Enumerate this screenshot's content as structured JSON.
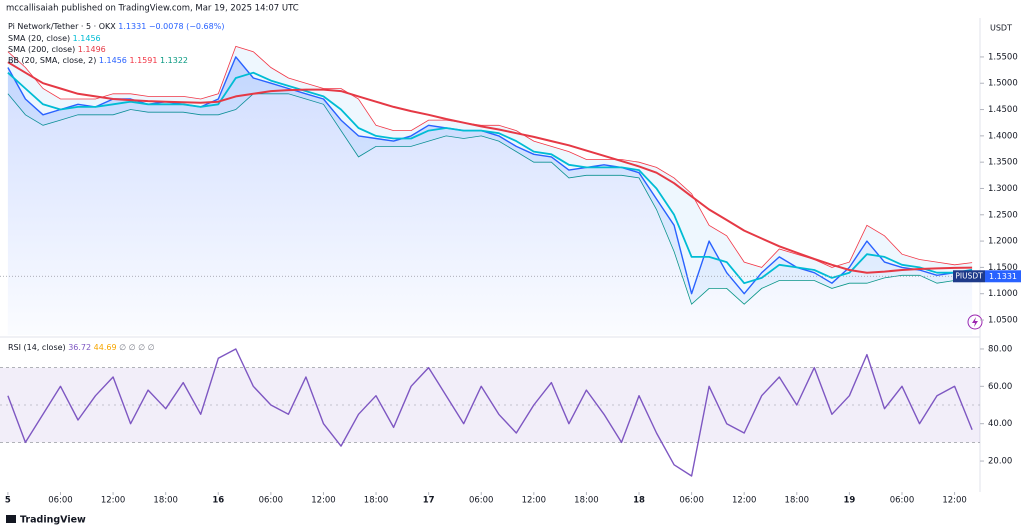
{
  "header": {
    "byline": "mccallisaiah published on TradingView.com, Mar 19, 2025 14:07 UTC",
    "brand": "TradingView"
  },
  "chart_data": [
    {
      "type": "line",
      "title": "Pi Network/Tether · 5 · OKX",
      "change": "−0.0078 (−0.68%)",
      "symbol": "PIUSDT",
      "unit": "USDT",
      "x": [
        0,
        2,
        4,
        6,
        8,
        10,
        12,
        14,
        16,
        18,
        20,
        22,
        24,
        26,
        28,
        30,
        32,
        34,
        36,
        38,
        40,
        42,
        44,
        46,
        48,
        50,
        52,
        54,
        56,
        58,
        60,
        62,
        64,
        66,
        68,
        70,
        72,
        74,
        76,
        78,
        80,
        82,
        84,
        86,
        88,
        90,
        92,
        94,
        96,
        98,
        100,
        102,
        104,
        106,
        108,
        110
      ],
      "xlim": [
        -0.9,
        110.9
      ],
      "ylim": [
        1.0215,
        1.624
      ],
      "yticks": [
        {
          "value": 1.05,
          "label": "1.0500"
        },
        {
          "value": 1.1,
          "label": "1.1000"
        },
        {
          "value": 1.15,
          "label": "1.1500"
        },
        {
          "value": 1.2,
          "label": "1.2000"
        },
        {
          "value": 1.25,
          "label": "1.2500"
        },
        {
          "value": 1.3,
          "label": "1.3000"
        },
        {
          "value": 1.35,
          "label": "1.3500"
        },
        {
          "value": 1.4,
          "label": "1.4000"
        },
        {
          "value": 1.45,
          "label": "1.4500"
        },
        {
          "value": 1.5,
          "label": "1.5000"
        },
        {
          "value": 1.55,
          "label": "1.5500"
        }
      ],
      "series": [
        {
          "name": "Pi Network/Tether · 5 · OKX",
          "color": "#2962ff",
          "values": [
            1.53,
            1.47,
            1.44,
            1.45,
            1.46,
            1.455,
            1.47,
            1.47,
            1.46,
            1.465,
            1.46,
            1.455,
            1.47,
            1.55,
            1.51,
            1.5,
            1.49,
            1.48,
            1.47,
            1.43,
            1.4,
            1.395,
            1.39,
            1.4,
            1.42,
            1.415,
            1.41,
            1.41,
            1.4,
            1.38,
            1.365,
            1.36,
            1.335,
            1.34,
            1.345,
            1.34,
            1.33,
            1.28,
            1.23,
            1.1,
            1.2,
            1.14,
            1.1,
            1.14,
            1.17,
            1.15,
            1.14,
            1.12,
            1.15,
            1.2,
            1.16,
            1.15,
            1.145,
            1.135,
            1.14,
            1.1331
          ]
        },
        {
          "name": "SMA (20, close)",
          "color": "#00bcd4",
          "values": [
            1.52,
            1.49,
            1.46,
            1.45,
            1.455,
            1.455,
            1.46,
            1.465,
            1.46,
            1.46,
            1.46,
            1.455,
            1.46,
            1.51,
            1.52,
            1.505,
            1.495,
            1.485,
            1.475,
            1.45,
            1.415,
            1.4,
            1.395,
            1.395,
            1.41,
            1.415,
            1.41,
            1.41,
            1.405,
            1.39,
            1.37,
            1.365,
            1.345,
            1.34,
            1.34,
            1.34,
            1.335,
            1.3,
            1.25,
            1.17,
            1.17,
            1.16,
            1.12,
            1.13,
            1.155,
            1.15,
            1.145,
            1.13,
            1.14,
            1.175,
            1.17,
            1.155,
            1.15,
            1.14,
            1.14,
            1.1456
          ]
        },
        {
          "name": "SMA (200, close)",
          "color": "#e53945",
          "values": [
            1.54,
            1.52,
            1.5,
            1.49,
            1.48,
            1.475,
            1.47,
            1.468,
            1.466,
            1.465,
            1.464,
            1.463,
            1.465,
            1.475,
            1.48,
            1.485,
            1.487,
            1.488,
            1.488,
            1.485,
            1.475,
            1.465,
            1.455,
            1.447,
            1.44,
            1.432,
            1.425,
            1.418,
            1.412,
            1.405,
            1.398,
            1.39,
            1.382,
            1.372,
            1.362,
            1.352,
            1.342,
            1.33,
            1.31,
            1.285,
            1.26,
            1.24,
            1.22,
            1.205,
            1.19,
            1.178,
            1.166,
            1.155,
            1.145,
            1.14,
            1.142,
            1.145,
            1.147,
            1.148,
            1.149,
            1.1496
          ]
        }
      ],
      "bands": {
        "name": "BB (20, SMA, close, 2)",
        "color": "#f23645",
        "lower_color": "#089981",
        "upper": [
          1.56,
          1.53,
          1.49,
          1.47,
          1.47,
          1.47,
          1.48,
          1.48,
          1.475,
          1.475,
          1.475,
          1.47,
          1.48,
          1.57,
          1.56,
          1.53,
          1.51,
          1.5,
          1.49,
          1.49,
          1.47,
          1.42,
          1.41,
          1.41,
          1.43,
          1.43,
          1.425,
          1.42,
          1.42,
          1.41,
          1.39,
          1.38,
          1.37,
          1.355,
          1.355,
          1.355,
          1.35,
          1.34,
          1.32,
          1.29,
          1.23,
          1.21,
          1.16,
          1.15,
          1.185,
          1.175,
          1.165,
          1.15,
          1.16,
          1.23,
          1.21,
          1.175,
          1.165,
          1.16,
          1.155,
          1.1591
        ],
        "lower": [
          1.48,
          1.44,
          1.42,
          1.43,
          1.44,
          1.44,
          1.44,
          1.45,
          1.445,
          1.445,
          1.445,
          1.44,
          1.44,
          1.45,
          1.48,
          1.48,
          1.48,
          1.47,
          1.46,
          1.41,
          1.36,
          1.38,
          1.38,
          1.38,
          1.39,
          1.4,
          1.395,
          1.4,
          1.39,
          1.37,
          1.35,
          1.35,
          1.32,
          1.325,
          1.325,
          1.325,
          1.32,
          1.26,
          1.18,
          1.08,
          1.11,
          1.11,
          1.08,
          1.11,
          1.125,
          1.125,
          1.125,
          1.11,
          1.12,
          1.12,
          1.13,
          1.135,
          1.135,
          1.12,
          1.125,
          1.1322
        ]
      },
      "grid": false
    },
    {
      "type": "line",
      "title": "RSI (14, close)",
      "ma_value": 44.69,
      "extra": "∅ ∅ ∅ ∅",
      "x": [
        0,
        2,
        4,
        6,
        8,
        10,
        12,
        14,
        16,
        18,
        20,
        22,
        24,
        26,
        28,
        30,
        32,
        34,
        36,
        38,
        40,
        42,
        44,
        46,
        48,
        50,
        52,
        54,
        56,
        58,
        60,
        62,
        64,
        66,
        68,
        70,
        72,
        74,
        76,
        78,
        80,
        82,
        84,
        86,
        88,
        90,
        92,
        94,
        96,
        98,
        100,
        102,
        104,
        106,
        108,
        110
      ],
      "xlim": [
        -0.9,
        110.9
      ],
      "ylim": [
        4.5,
        84.8
      ],
      "yticks": [
        {
          "value": 20,
          "label": "20.00"
        },
        {
          "value": 40,
          "label": "40.00"
        },
        {
          "value": 60,
          "label": "60.00"
        },
        {
          "value": 80,
          "label": "80.00"
        }
      ],
      "xticks": [
        {
          "value": 0,
          "label": "5"
        },
        {
          "value": 6,
          "label": "06:00"
        },
        {
          "value": 12,
          "label": "12:00"
        },
        {
          "value": 18,
          "label": "18:00"
        },
        {
          "value": 24,
          "label": "16"
        },
        {
          "value": 30,
          "label": "06:00"
        },
        {
          "value": 36,
          "label": "12:00"
        },
        {
          "value": 42,
          "label": "18:00"
        },
        {
          "value": 48,
          "label": "17"
        },
        {
          "value": 54,
          "label": "06:00"
        },
        {
          "value": 60,
          "label": "12:00"
        },
        {
          "value": 66,
          "label": "18:00"
        },
        {
          "value": 72,
          "label": "18"
        },
        {
          "value": 78,
          "label": "06:00"
        },
        {
          "value": 84,
          "label": "12:00"
        },
        {
          "value": 90,
          "label": "18:00"
        },
        {
          "value": 96,
          "label": "19"
        },
        {
          "value": 102,
          "label": "06:00"
        },
        {
          "value": 108,
          "label": "12:00"
        }
      ],
      "band": [
        30,
        70
      ],
      "midline": 50,
      "series": [
        {
          "name": "RSI (14, close)",
          "color": "#7e57c2",
          "values": [
            55,
            30,
            45,
            60,
            42,
            55,
            65,
            40,
            58,
            48,
            62,
            45,
            75,
            80,
            60,
            50,
            45,
            65,
            40,
            28,
            45,
            55,
            38,
            60,
            70,
            55,
            40,
            60,
            45,
            35,
            50,
            62,
            40,
            58,
            45,
            30,
            55,
            35,
            18,
            12,
            60,
            40,
            35,
            55,
            65,
            50,
            70,
            45,
            55,
            77,
            48,
            60,
            40,
            55,
            60,
            36.72
          ]
        }
      ],
      "ma_color": "#f7a600",
      "grid": false
    }
  ]
}
